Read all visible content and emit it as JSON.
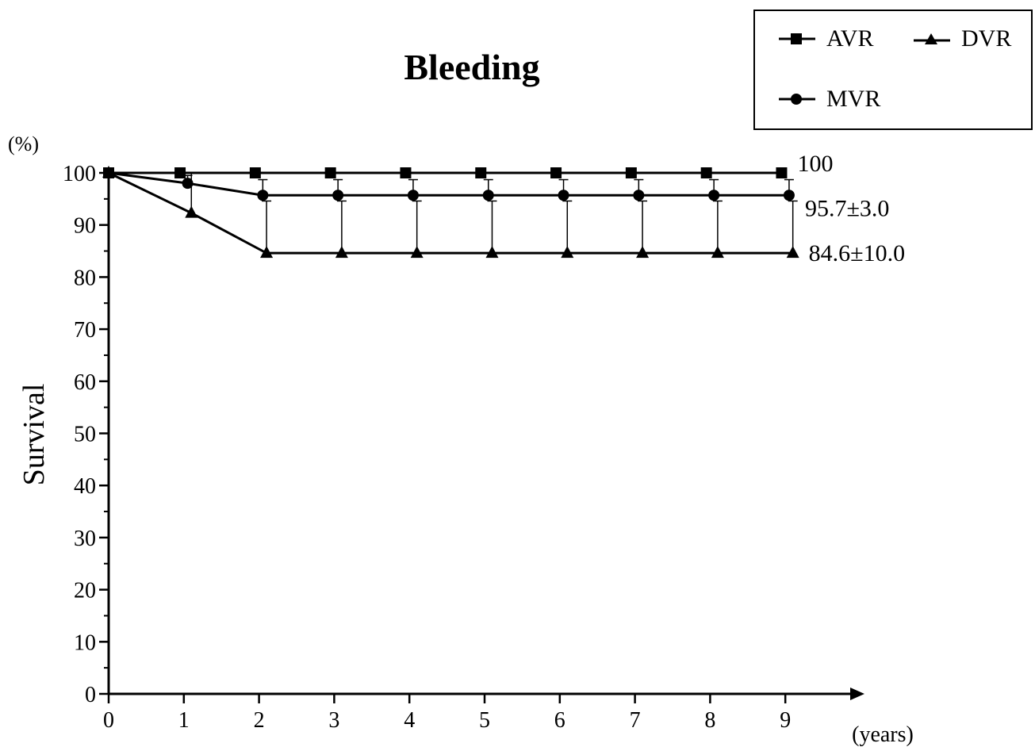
{
  "chart_data": {
    "type": "line",
    "title": "Bleeding",
    "xlabel": "(years)",
    "ylabel": "Survival",
    "yunit": "(%)",
    "xlim": [
      0,
      9
    ],
    "ylim": [
      0,
      100
    ],
    "xticks": [
      "0",
      "1",
      "2",
      "3",
      "4",
      "5",
      "6",
      "7",
      "8",
      "9"
    ],
    "yticks": [
      "0",
      "10",
      "20",
      "30",
      "40",
      "50",
      "60",
      "70",
      "80",
      "90",
      "100"
    ],
    "grid": false,
    "legend_position": "top-right",
    "series": [
      {
        "name": "AVR",
        "marker": "square",
        "x": [
          0,
          0.95,
          1.95,
          2.95,
          3.95,
          4.95,
          5.95,
          6.95,
          7.95,
          8.95
        ],
        "y": [
          100,
          100,
          100,
          100,
          100,
          100,
          100,
          100,
          100,
          100
        ],
        "end_label": "100"
      },
      {
        "name": "MVR",
        "marker": "circle",
        "x": [
          0,
          1.05,
          2.05,
          3.05,
          4.05,
          5.05,
          6.05,
          7.05,
          8.05,
          9.05
        ],
        "y": [
          100,
          98.0,
          95.7,
          95.7,
          95.7,
          95.7,
          95.7,
          95.7,
          95.7,
          95.7
        ],
        "error": [
          0,
          1.5,
          3.0,
          3.0,
          3.0,
          3.0,
          3.0,
          3.0,
          3.0,
          3.0
        ],
        "end_label": "95.7±3.0"
      },
      {
        "name": "DVR",
        "marker": "triangle",
        "x": [
          0,
          1.1,
          2.1,
          3.1,
          4.1,
          5.1,
          6.1,
          7.1,
          8.1,
          9.1
        ],
        "y": [
          100,
          92.3,
          84.6,
          84.6,
          84.6,
          84.6,
          84.6,
          84.6,
          84.6,
          84.6
        ],
        "error": [
          0,
          7.7,
          10.0,
          10.0,
          10.0,
          10.0,
          10.0,
          10.0,
          10.0,
          10.0
        ],
        "end_label": "84.6±10.0"
      }
    ]
  }
}
